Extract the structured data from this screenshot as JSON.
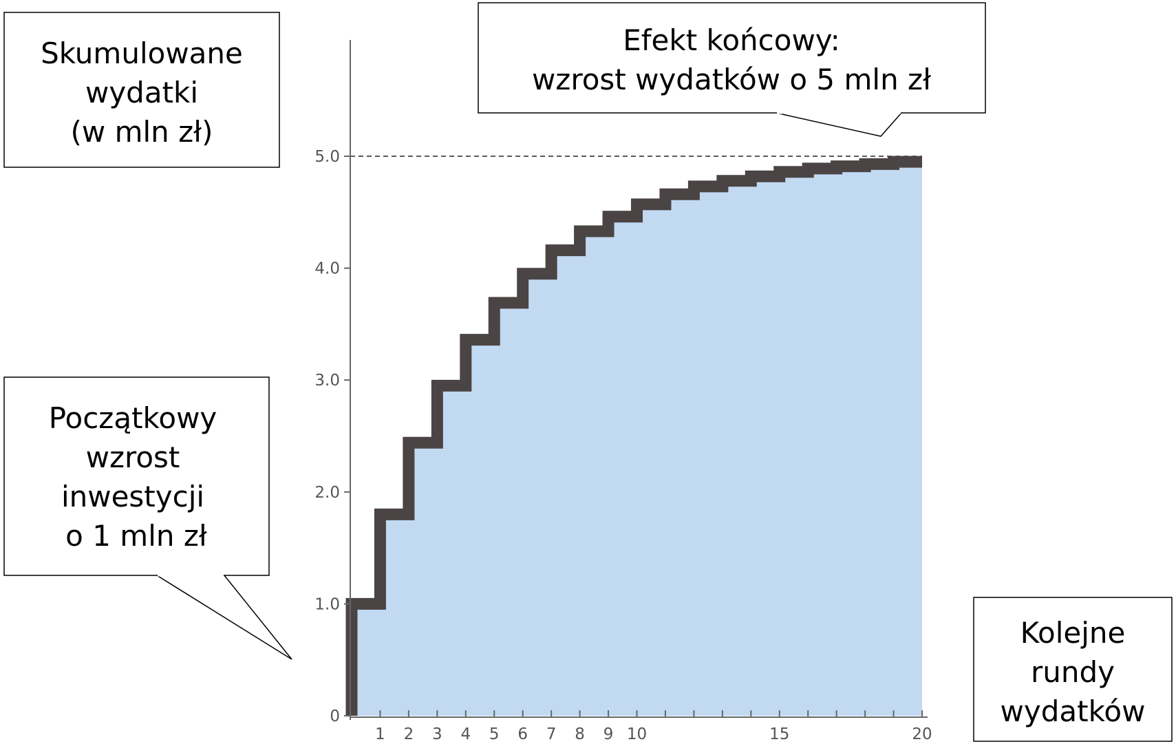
{
  "chart_data": {
    "type": "area",
    "style": "step",
    "x": [
      1,
      2,
      3,
      4,
      5,
      6,
      7,
      8,
      9,
      10,
      11,
      12,
      13,
      14,
      15,
      16,
      17,
      18,
      19,
      20
    ],
    "values": [
      1.0,
      1.8,
      2.44,
      2.95,
      3.36,
      3.69,
      3.95,
      4.16,
      4.33,
      4.46,
      4.57,
      4.66,
      4.73,
      4.78,
      4.82,
      4.86,
      4.89,
      4.91,
      4.93,
      4.95
    ],
    "xlim": [
      0,
      20
    ],
    "ylim": [
      0,
      5
    ],
    "x_tick_labels": [
      "1",
      "2",
      "3",
      "4",
      "5",
      "6",
      "7",
      "8",
      "9",
      "10",
      "15",
      "20"
    ],
    "x_tick_values": [
      1,
      2,
      3,
      4,
      5,
      6,
      7,
      8,
      9,
      10,
      15,
      20
    ],
    "y_tick_labels": [
      "0",
      "1.0",
      "2.0",
      "3.0",
      "4.0",
      "5.0"
    ],
    "y_tick_values": [
      0,
      1,
      2,
      3,
      4,
      5
    ],
    "reference_line": 5.0,
    "ylabel": "Skumulowane wydatki (w mln zł)",
    "xlabel": "Kolejne rundy wydatków",
    "annotations": {
      "initial": "Początkowy wzrost inwestycji o 1 mln zł",
      "final": "Efekt końcowy: wzrost wydatków o 5 mln zł"
    },
    "grid": false
  },
  "colors": {
    "fill": "#c2d9f2",
    "step_line": "#4a4444",
    "axis": "#666666"
  },
  "boxes": {
    "ylabel_lines": [
      "Skumulowane",
      "wydatki",
      "(w mln zł)"
    ],
    "final_lines": [
      "Efekt końcowy:",
      "wzrost wydatków o 5 mln zł"
    ],
    "initial_lines": [
      "Początkowy",
      "wzrost",
      "inwestycji",
      "o 1 mln zł"
    ],
    "xlabel_lines": [
      "Kolejne",
      "rundy",
      "wydatków"
    ]
  }
}
